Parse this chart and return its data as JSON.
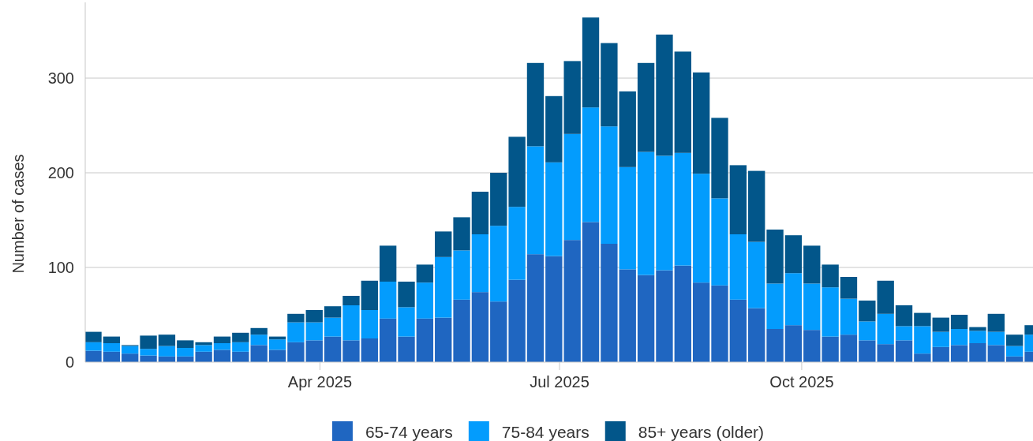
{
  "chart_data": {
    "type": "bar",
    "stacked": true,
    "ylabel": "Number of cases",
    "x": [
      "2025-01-05",
      "2025-01-12",
      "2025-01-19",
      "2025-01-26",
      "2025-02-02",
      "2025-02-09",
      "2025-02-16",
      "2025-02-23",
      "2025-03-02",
      "2025-03-09",
      "2025-03-16",
      "2025-03-23",
      "2025-03-30",
      "2025-04-06",
      "2025-04-13",
      "2025-04-20",
      "2025-04-27",
      "2025-05-04",
      "2025-05-11",
      "2025-05-18",
      "2025-05-25",
      "2025-06-01",
      "2025-06-08",
      "2025-06-15",
      "2025-06-22",
      "2025-06-29",
      "2025-07-06",
      "2025-07-13",
      "2025-07-20",
      "2025-07-27",
      "2025-08-03",
      "2025-08-10",
      "2025-08-17",
      "2025-08-24",
      "2025-08-31",
      "2025-09-07",
      "2025-09-14",
      "2025-09-21",
      "2025-09-28",
      "2025-10-05",
      "2025-10-12",
      "2025-10-19",
      "2025-10-26",
      "2025-11-02",
      "2025-11-09",
      "2025-11-16",
      "2025-11-23",
      "2025-11-30",
      "2025-12-07",
      "2025-12-14",
      "2025-12-21",
      "2025-12-28"
    ],
    "series": [
      {
        "name": "65-74 years",
        "color": "#1f66c1",
        "values": [
          12,
          11,
          9,
          7,
          6,
          6,
          11,
          13,
          11,
          18,
          13,
          21,
          23,
          27,
          23,
          25,
          46,
          27,
          46,
          47,
          66,
          74,
          64,
          87,
          114,
          112,
          129,
          148,
          125,
          98,
          92,
          97,
          102,
          84,
          81,
          66,
          57,
          35,
          39,
          34,
          27,
          29,
          23,
          19,
          23,
          9,
          16,
          18,
          20,
          18,
          6,
          11
        ]
      },
      {
        "name": "75-84 years",
        "color": "#039cfd",
        "values": [
          9,
          9,
          8,
          7,
          11,
          9,
          7,
          7,
          10,
          11,
          11,
          21,
          19,
          20,
          37,
          30,
          39,
          31,
          38,
          64,
          52,
          61,
          80,
          77,
          114,
          99,
          112,
          121,
          124,
          108,
          130,
          121,
          119,
          115,
          92,
          69,
          70,
          48,
          55,
          49,
          52,
          38,
          20,
          32,
          15,
          29,
          16,
          17,
          13,
          14,
          11,
          18
        ]
      },
      {
        "name": "85+ years (older)",
        "color": "#02568a",
        "values": [
          11,
          7,
          1,
          14,
          12,
          8,
          3,
          7,
          10,
          7,
          3,
          9,
          13,
          12,
          10,
          31,
          38,
          27,
          19,
          27,
          35,
          45,
          56,
          74,
          88,
          70,
          77,
          95,
          88,
          80,
          94,
          128,
          107,
          107,
          85,
          73,
          75,
          57,
          40,
          40,
          24,
          23,
          22,
          35,
          22,
          14,
          15,
          15,
          4,
          19,
          12,
          10
        ]
      }
    ],
    "xlim": [
      "2025-01-02",
      "2025-12-28"
    ],
    "xticks": [
      {
        "value": "2025-04-01",
        "label": "Apr 2025"
      },
      {
        "value": "2025-07-01",
        "label": "Jul 2025"
      },
      {
        "value": "2025-10-01",
        "label": "Oct 2025"
      }
    ],
    "ylim": [
      0,
      380
    ],
    "yticks": [
      0,
      100,
      200,
      300
    ],
    "grid": "y",
    "legend": "bottom"
  }
}
